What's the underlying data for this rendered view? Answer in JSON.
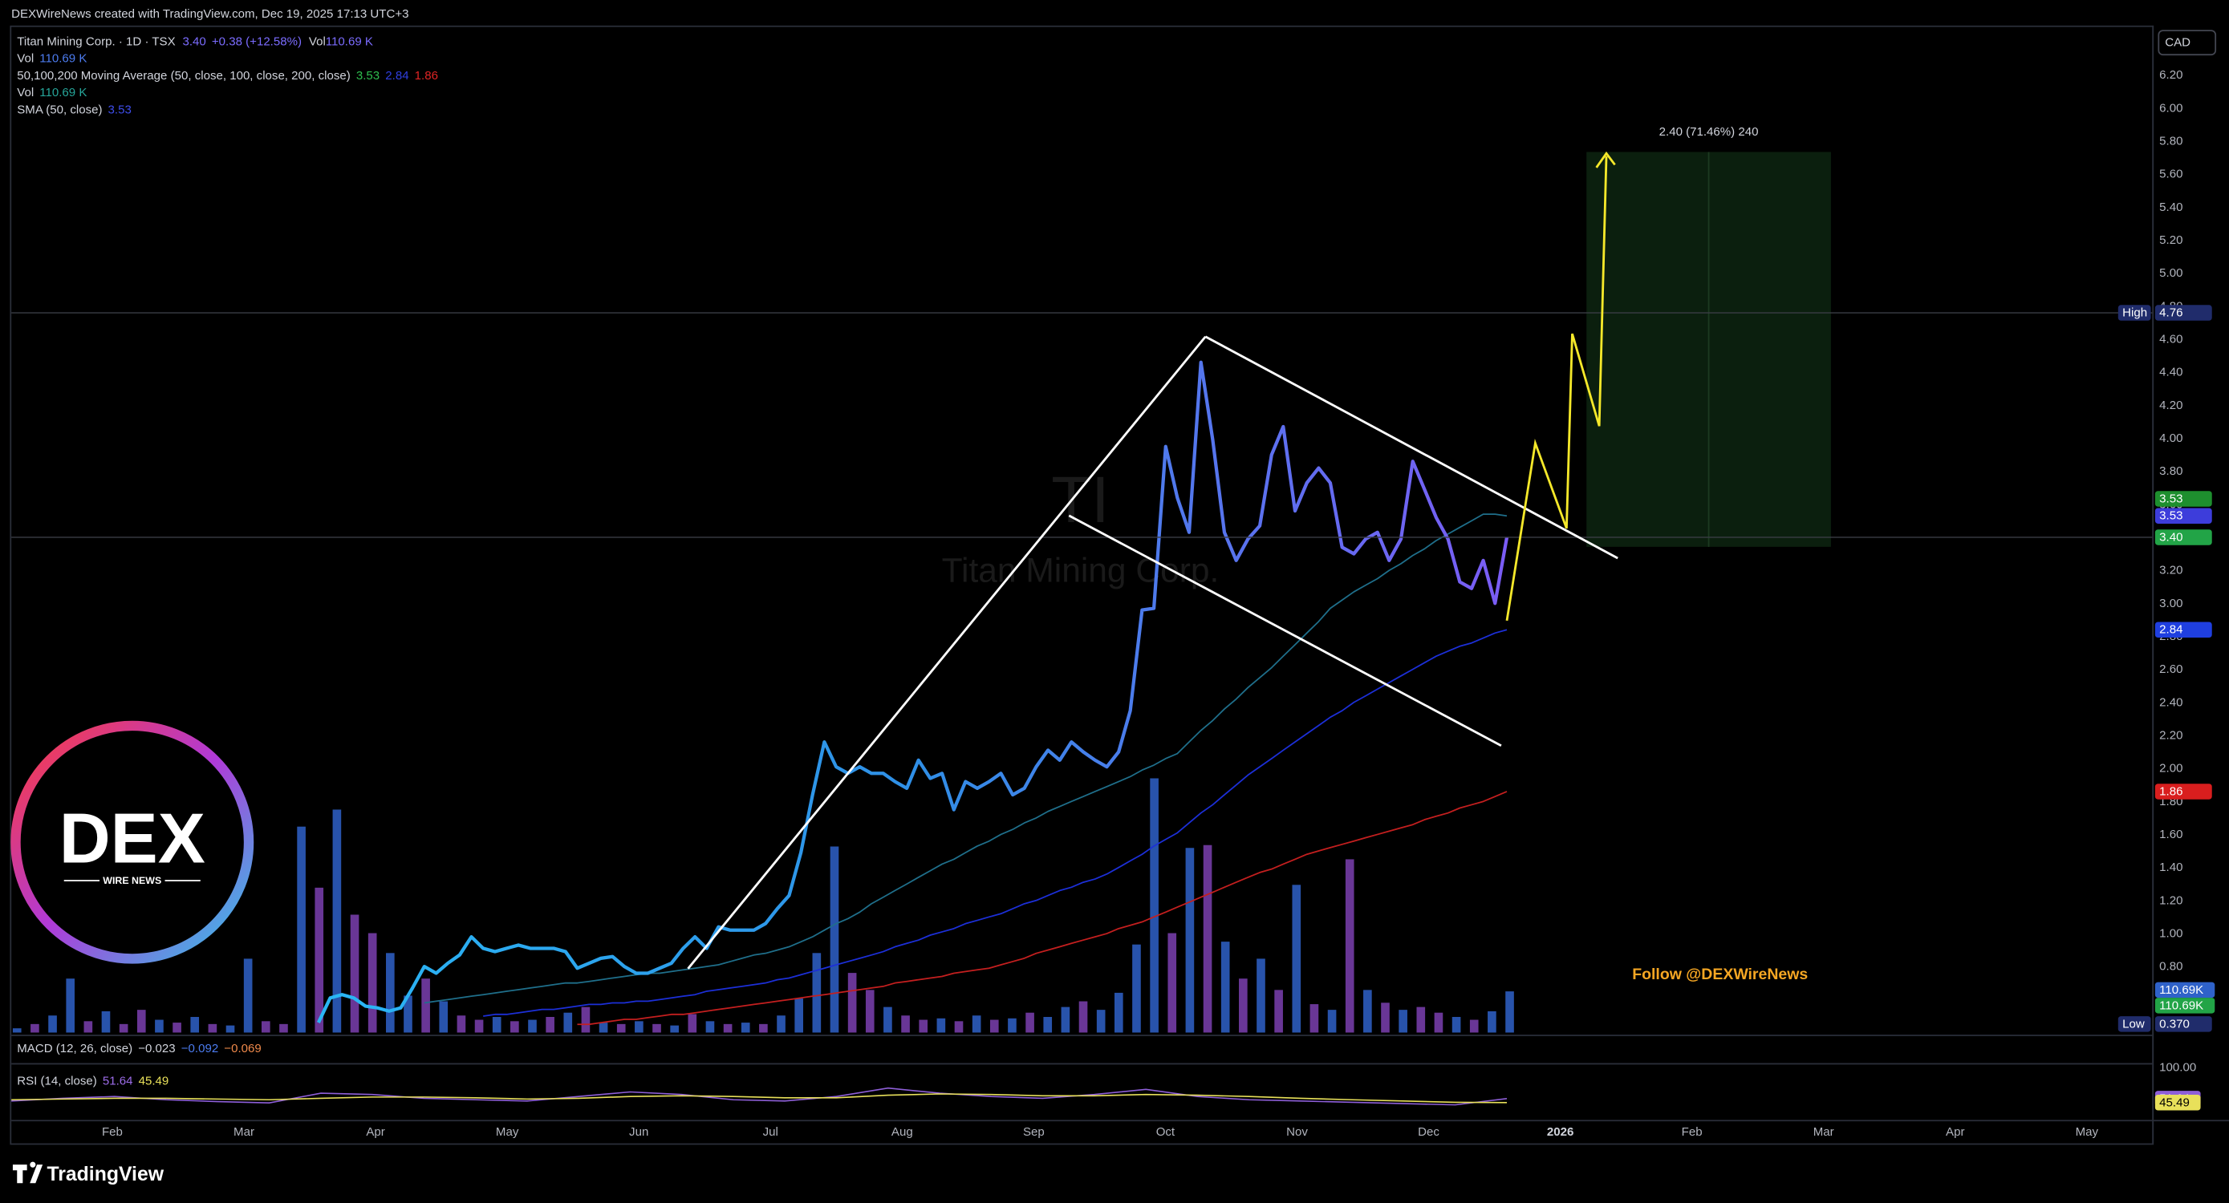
{
  "header": {
    "credit": "DEXWireNews created with TradingView.com, Dec 19, 2025 17:13 UTC+3",
    "currency": "CAD"
  },
  "legend": {
    "symbol": "Titan Mining Corp. · 1D · TSX",
    "close": "3.40",
    "change": "+0.38 (+12.58%)",
    "vol_label": "Vol",
    "vol": "110.69 K",
    "vol_row": [
      "Vol",
      "110.69 K"
    ],
    "ma_row": [
      "50,100,200 Moving Average (50, close, 100, close, 200, close)",
      "3.53",
      "2.84",
      "1.86"
    ],
    "vol_row2": [
      "Vol",
      "110.69 K"
    ],
    "sma_row": [
      "SMA (50, close)",
      "3.53"
    ]
  },
  "watermark": {
    "ticker": "TI",
    "name": "Titan Mining Corp."
  },
  "logo": {
    "big": "DEX",
    "small": "WIRE NEWS"
  },
  "follow": "Follow @DEXWireNews",
  "projection_label": "2.40 (71.46%) 240",
  "macd": [
    "MACD (12, 26, close)",
    "−0.023",
    "−0.092",
    "−0.069"
  ],
  "rsi_legend": [
    "RSI (14, close)",
    "51.64",
    "45.49"
  ],
  "brand": "TradingView",
  "chart_data": {
    "type": "line",
    "grid": false,
    "ylim": [
      0.4,
      6.5
    ],
    "yticks": [
      {
        "value": 0.8,
        "label": "0.80"
      },
      {
        "value": 1.0,
        "label": "1.00"
      },
      {
        "value": 1.2,
        "label": "1.20"
      },
      {
        "value": 1.4,
        "label": "1.40"
      },
      {
        "value": 1.6,
        "label": "1.60"
      },
      {
        "value": 1.8,
        "label": "1.80"
      },
      {
        "value": 2.0,
        "label": "2.00"
      },
      {
        "value": 2.2,
        "label": "2.20"
      },
      {
        "value": 2.4,
        "label": "2.40"
      },
      {
        "value": 2.6,
        "label": "2.60"
      },
      {
        "value": 2.8,
        "label": "2.80"
      },
      {
        "value": 3.0,
        "label": "3.00"
      },
      {
        "value": 3.2,
        "label": "3.20"
      },
      {
        "value": 3.4,
        "label": "3.40"
      },
      {
        "value": 3.6,
        "label": "3.60"
      },
      {
        "value": 3.8,
        "label": "3.80"
      },
      {
        "value": 4.0,
        "label": "4.00"
      },
      {
        "value": 4.2,
        "label": "4.20"
      },
      {
        "value": 4.4,
        "label": "4.40"
      },
      {
        "value": 4.6,
        "label": "4.60"
      },
      {
        "value": 4.8,
        "label": "4.80"
      },
      {
        "value": 5.0,
        "label": "5.00"
      },
      {
        "value": 5.2,
        "label": "5.20"
      },
      {
        "value": 5.4,
        "label": "5.40"
      },
      {
        "value": 5.6,
        "label": "5.60"
      },
      {
        "value": 5.8,
        "label": "5.80"
      },
      {
        "value": 6.0,
        "label": "6.00"
      },
      {
        "value": 6.2,
        "label": "6.20"
      }
    ],
    "x_labels": [
      "Feb",
      "Mar",
      "Apr",
      "May",
      "Jun",
      "Jul",
      "Aug",
      "Sep",
      "Oct",
      "Nov",
      "Dec",
      "2026",
      "Feb",
      "Mar",
      "Apr",
      "May"
    ],
    "series": [
      {
        "colors": [
          "#2ab7f5",
          "#2f8fe6",
          "#7b5cf5"
        ],
        "values": [
          0.46,
          0.61,
          0.63,
          0.61,
          0.56,
          0.55,
          0.53,
          0.55,
          0.67,
          0.8,
          0.76,
          0.82,
          0.87,
          0.98,
          0.91,
          0.89,
          0.91,
          0.93,
          0.91,
          0.91,
          0.91,
          0.89,
          0.79,
          0.82,
          0.85,
          0.86,
          0.8,
          0.76,
          0.76,
          0.79,
          0.82,
          0.91,
          0.98,
          0.91,
          1.04,
          1.02,
          1.02,
          1.02,
          1.06,
          1.15,
          1.23,
          1.49,
          1.84,
          2.16,
          2.01,
          1.97,
          2.01,
          1.97,
          1.97,
          1.92,
          1.88,
          2.05,
          1.94,
          1.97,
          1.75,
          1.92,
          1.88,
          1.92,
          1.97,
          1.84,
          1.88,
          2.01,
          2.11,
          2.05,
          2.16,
          2.1,
          2.05,
          2.01,
          2.1,
          2.35,
          2.96,
          2.97,
          3.95,
          3.64,
          3.43,
          4.46,
          3.99,
          3.43,
          3.26,
          3.39,
          3.47,
          3.9,
          4.07,
          3.56,
          3.73,
          3.82,
          3.73,
          3.34,
          3.3,
          3.39,
          3.43,
          3.26,
          3.39,
          3.86,
          3.69,
          3.52,
          3.39,
          3.13,
          3.09,
          3.26,
          3.0,
          3.4
        ]
      },
      {
        "color": "#1f6f8b",
        "values": [
          null,
          null,
          null,
          null,
          null,
          null,
          null,
          null,
          null,
          0.58,
          0.59,
          0.6,
          0.61,
          0.62,
          0.63,
          0.64,
          0.65,
          0.66,
          0.67,
          0.68,
          0.69,
          0.7,
          0.7,
          0.71,
          0.72,
          0.73,
          0.74,
          0.75,
          0.76,
          0.76,
          0.77,
          0.78,
          0.79,
          0.8,
          0.81,
          0.83,
          0.85,
          0.87,
          0.88,
          0.9,
          0.92,
          0.95,
          0.98,
          1.02,
          1.06,
          1.09,
          1.13,
          1.18,
          1.22,
          1.26,
          1.3,
          1.34,
          1.38,
          1.42,
          1.45,
          1.49,
          1.53,
          1.56,
          1.6,
          1.63,
          1.67,
          1.7,
          1.74,
          1.77,
          1.8,
          1.83,
          1.86,
          1.89,
          1.92,
          1.95,
          1.99,
          2.02,
          2.06,
          2.09,
          2.16,
          2.23,
          2.29,
          2.36,
          2.42,
          2.49,
          2.55,
          2.61,
          2.68,
          2.75,
          2.82,
          2.89,
          2.97,
          3.02,
          3.07,
          3.11,
          3.15,
          3.2,
          3.24,
          3.29,
          3.33,
          3.38,
          3.42,
          3.46,
          3.5,
          3.54,
          3.54,
          3.53
        ]
      },
      {
        "color": "#1c2fd8",
        "values": [
          null,
          null,
          null,
          null,
          null,
          null,
          null,
          null,
          null,
          null,
          null,
          null,
          null,
          null,
          0.5,
          0.51,
          0.51,
          0.52,
          0.53,
          0.54,
          0.54,
          0.55,
          0.56,
          0.57,
          0.57,
          0.58,
          0.58,
          0.59,
          0.59,
          0.6,
          0.61,
          0.62,
          0.63,
          0.65,
          0.66,
          0.67,
          0.68,
          0.69,
          0.7,
          0.72,
          0.73,
          0.75,
          0.77,
          0.79,
          0.81,
          0.83,
          0.85,
          0.87,
          0.89,
          0.92,
          0.94,
          0.96,
          0.99,
          1.01,
          1.03,
          1.06,
          1.08,
          1.1,
          1.12,
          1.15,
          1.18,
          1.2,
          1.23,
          1.26,
          1.28,
          1.31,
          1.33,
          1.36,
          1.4,
          1.44,
          1.48,
          1.53,
          1.57,
          1.61,
          1.67,
          1.73,
          1.78,
          1.84,
          1.9,
          1.96,
          2.01,
          2.06,
          2.11,
          2.16,
          2.21,
          2.26,
          2.31,
          2.35,
          2.4,
          2.44,
          2.48,
          2.52,
          2.56,
          2.6,
          2.64,
          2.68,
          2.71,
          2.74,
          2.76,
          2.79,
          2.82,
          2.84
        ]
      },
      {
        "color": "#c41f1f",
        "values": [
          null,
          null,
          null,
          null,
          null,
          null,
          null,
          null,
          null,
          null,
          null,
          null,
          null,
          null,
          null,
          null,
          null,
          null,
          null,
          null,
          null,
          null,
          0.45,
          0.45,
          0.46,
          0.47,
          0.48,
          0.48,
          0.49,
          0.5,
          0.51,
          0.51,
          0.52,
          0.53,
          0.54,
          0.55,
          0.56,
          0.57,
          0.58,
          0.59,
          0.6,
          0.61,
          0.62,
          0.63,
          0.64,
          0.65,
          0.66,
          0.67,
          0.68,
          0.7,
          0.71,
          0.72,
          0.73,
          0.74,
          0.76,
          0.77,
          0.78,
          0.79,
          0.81,
          0.83,
          0.85,
          0.88,
          0.9,
          0.92,
          0.94,
          0.96,
          0.98,
          1.0,
          1.03,
          1.05,
          1.07,
          1.1,
          1.13,
          1.16,
          1.19,
          1.22,
          1.25,
          1.28,
          1.31,
          1.34,
          1.37,
          1.39,
          1.42,
          1.45,
          1.48,
          1.5,
          1.52,
          1.54,
          1.56,
          1.58,
          1.6,
          1.62,
          1.64,
          1.66,
          1.69,
          1.71,
          1.73,
          1.76,
          1.78,
          1.8,
          1.83,
          1.86
        ]
      }
    ],
    "price_labels": [
      {
        "tag": "High",
        "value": 4.76,
        "color": "#202c6b",
        "line": true
      },
      {
        "value": 3.53,
        "color": "#1e8f2e"
      },
      {
        "value": 3.53,
        "color": "#3d3ddb"
      },
      {
        "value": 3.4,
        "label": "3.40",
        "color": "#22a447",
        "line": true
      },
      {
        "value": 2.84,
        "color": "#1f3fe0"
      },
      {
        "value": 1.86,
        "color": "#d91e1e"
      },
      {
        "tag": "Low",
        "value": 0.37,
        "label": "0.370",
        "color": "#202c6b"
      }
    ],
    "volume": {
      "ylim": [
        0,
        2000
      ],
      "values": [
        30,
        60,
        120,
        380,
        80,
        150,
        60,
        160,
        90,
        70,
        110,
        60,
        50,
        520,
        80,
        60,
        1450,
        1020,
        1570,
        830,
        700,
        560,
        260,
        380,
        220,
        120,
        90,
        110,
        80,
        90,
        110,
        140,
        180,
        70,
        60,
        80,
        60,
        50,
        130,
        80,
        60,
        70,
        60,
        120,
        240,
        560,
        1310,
        420,
        300,
        180,
        120,
        90,
        100,
        80,
        120,
        90,
        100,
        140,
        110,
        180,
        220,
        160,
        280,
        620,
        1790,
        700,
        1300,
        1320,
        640,
        380,
        520,
        300,
        1040,
        200,
        160,
        1220,
        300,
        210,
        160,
        180,
        140,
        110,
        90,
        150,
        290
      ],
      "colors": [
        "#2f62c9",
        "#7b3fb0",
        "#2f62c9",
        "#2f62c9",
        "#7b3fb0",
        "#2f62c9",
        "#7b3fb0",
        "#7b3fb0",
        "#2f62c9",
        "#7b3fb0",
        "#2f62c9",
        "#7b3fb0",
        "#2f62c9",
        "#2f62c9",
        "#7b3fb0",
        "#7b3fb0",
        "#2f62c9",
        "#7b3fb0",
        "#2f62c9",
        "#7b3fb0",
        "#7b3fb0",
        "#2f62c9",
        "#2f62c9",
        "#7b3fb0",
        "#2f62c9",
        "#7b3fb0",
        "#7b3fb0",
        "#2f62c9",
        "#7b3fb0",
        "#2f62c9",
        "#7b3fb0",
        "#2f62c9",
        "#7b3fb0",
        "#2f62c9",
        "#7b3fb0",
        "#2f62c9",
        "#7b3fb0",
        "#2f62c9",
        "#7b3fb0",
        "#2f62c9",
        "#7b3fb0",
        "#2f62c9",
        "#7b3fb0",
        "#2f62c9",
        "#2f62c9",
        "#2f62c9",
        "#2f62c9",
        "#7b3fb0",
        "#7b3fb0",
        "#2f62c9",
        "#7b3fb0",
        "#7b3fb0",
        "#2f62c9",
        "#7b3fb0",
        "#2f62c9",
        "#7b3fb0",
        "#2f62c9",
        "#7b3fb0",
        "#2f62c9",
        "#2f62c9",
        "#7b3fb0",
        "#2f62c9",
        "#2f62c9",
        "#2f62c9",
        "#2f62c9",
        "#7b3fb0",
        "#2f62c9",
        "#7b3fb0",
        "#2f62c9",
        "#7b3fb0",
        "#2f62c9",
        "#7b3fb0",
        "#2f62c9",
        "#7b3fb0",
        "#2f62c9",
        "#7b3fb0",
        "#2f62c9",
        "#7b3fb0",
        "#2f62c9",
        "#7b3fb0",
        "#7b3fb0",
        "#2f62c9",
        "#7b3fb0",
        "#2f62c9",
        "#2f62c9"
      ],
      "labels": [
        {
          "label": "110.69K",
          "color": "#2f62c9"
        },
        {
          "label": "110.69K",
          "color": "#22a447"
        }
      ]
    },
    "rsi": {
      "ylim": [
        0,
        100
      ],
      "yticks": [
        {
          "value": 100,
          "label": "100.00"
        }
      ],
      "color": "#8e5fd8",
      "signal_color": "#e8e05a",
      "values": [
        48,
        52,
        55,
        50,
        47,
        45,
        60,
        58,
        52,
        50,
        48,
        55,
        62,
        58,
        50,
        48,
        55,
        68,
        60,
        55,
        52,
        58,
        66,
        55,
        50,
        48,
        46,
        44,
        42,
        51.64
      ],
      "signal_values": [
        50,
        51,
        52,
        52,
        51,
        50,
        52,
        54,
        54,
        53,
        51,
        52,
        55,
        56,
        55,
        53,
        53,
        57,
        59,
        58,
        56,
        56,
        58,
        57,
        55,
        52,
        50,
        48,
        46,
        45.49
      ]
    }
  }
}
